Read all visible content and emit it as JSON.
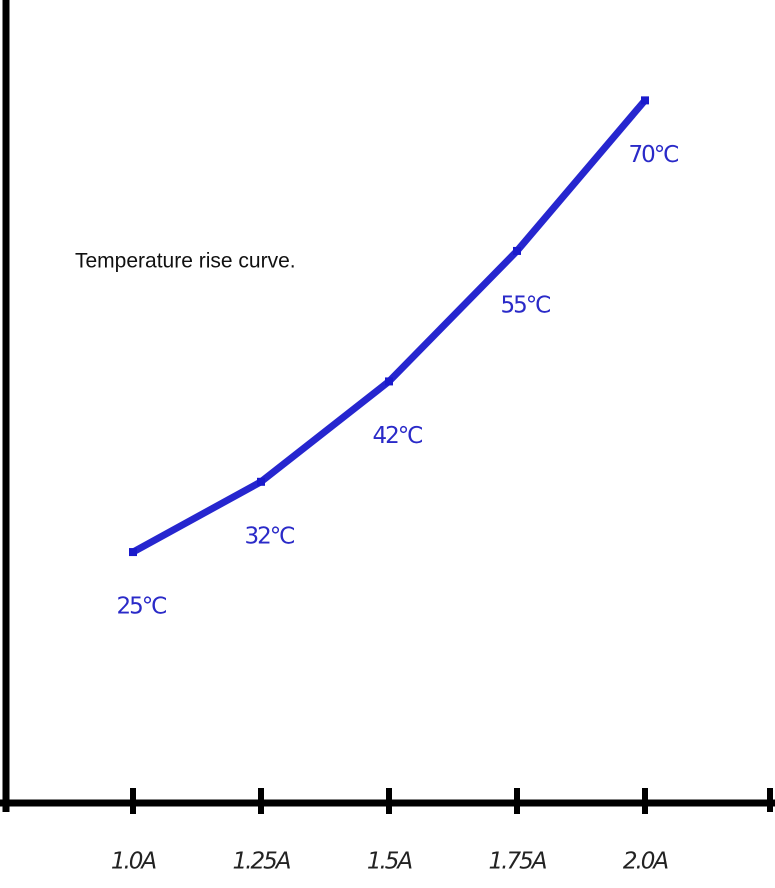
{
  "chart_data": {
    "type": "line",
    "title": "Temperature rise curve.",
    "categories": [
      "1.0A",
      "1.25A",
      "1.5A",
      "1.75A",
      "2.0A"
    ],
    "values": [
      25,
      32,
      42,
      55,
      70
    ],
    "value_labels": [
      "25℃",
      "32℃",
      "42℃",
      "55℃",
      "70℃"
    ],
    "color": "#1a1acc",
    "ylim": [
      0,
      80
    ]
  }
}
